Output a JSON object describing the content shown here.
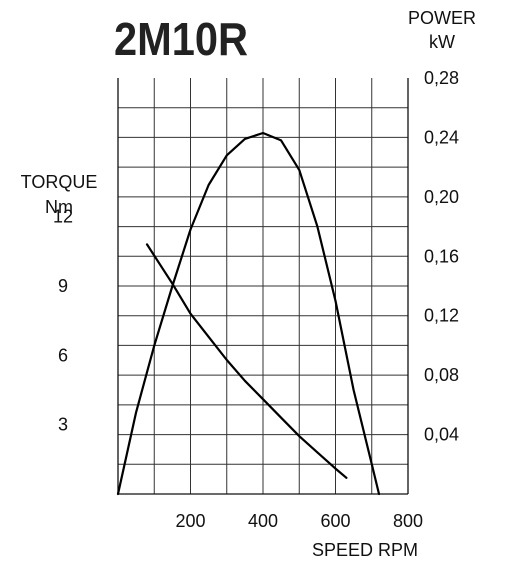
{
  "chart_data": {
    "type": "line",
    "title": "2M10R",
    "xlabel": "SPEED RPM",
    "xlim": [
      0,
      800
    ],
    "x_ticks": [
      {
        "value": 200,
        "label": "200"
      },
      {
        "value": 400,
        "label": "400"
      },
      {
        "value": 600,
        "label": "600"
      },
      {
        "value": 800,
        "label": "800"
      }
    ],
    "y_left": {
      "label_lines": [
        "TORQUE",
        "Nm"
      ],
      "lim": [
        0,
        18
      ],
      "ticks": [
        {
          "value": 3,
          "label": "3"
        },
        {
          "value": 6,
          "label": "6"
        },
        {
          "value": 9,
          "label": "9"
        },
        {
          "value": 12,
          "label": "12"
        }
      ]
    },
    "y_right": {
      "label_lines": [
        "POWER",
        "kW"
      ],
      "lim": [
        0,
        0.28
      ],
      "ticks": [
        {
          "value": 0.04,
          "label": "0,04"
        },
        {
          "value": 0.08,
          "label": "0,08"
        },
        {
          "value": 0.12,
          "label": "0,12"
        },
        {
          "value": 0.16,
          "label": "0,16"
        },
        {
          "value": 0.2,
          "label": "0,20"
        },
        {
          "value": 0.24,
          "label": "0,24"
        },
        {
          "value": 0.28,
          "label": "0,28"
        }
      ]
    },
    "grid": true,
    "series": [
      {
        "axis": "right",
        "color": "#000000",
        "points": [
          [
            0,
            0
          ],
          [
            50,
            0.055
          ],
          [
            100,
            0.1
          ],
          [
            150,
            0.14
          ],
          [
            200,
            0.178
          ],
          [
            250,
            0.208
          ],
          [
            300,
            0.228
          ],
          [
            350,
            0.239
          ],
          [
            400,
            0.243
          ],
          [
            450,
            0.238
          ],
          [
            500,
            0.218
          ],
          [
            550,
            0.18
          ],
          [
            600,
            0.13
          ],
          [
            650,
            0.07
          ],
          [
            700,
            0.02
          ],
          [
            720,
            0
          ]
        ]
      },
      {
        "axis": "left",
        "color": "#000000",
        "points": [
          [
            80,
            10.8
          ],
          [
            150,
            9.1
          ],
          [
            200,
            7.8
          ],
          [
            250,
            6.8
          ],
          [
            300,
            5.8
          ],
          [
            350,
            4.9
          ],
          [
            400,
            4.1
          ],
          [
            450,
            3.3
          ],
          [
            500,
            2.5
          ],
          [
            550,
            1.8
          ],
          [
            600,
            1.1
          ],
          [
            630,
            0.7
          ]
        ]
      }
    ]
  }
}
